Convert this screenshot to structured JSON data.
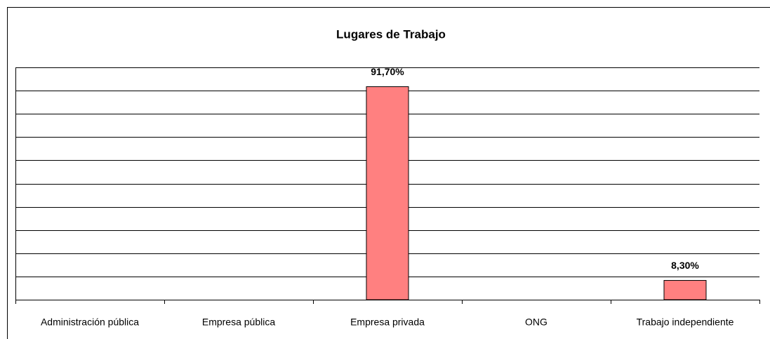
{
  "chart_data": {
    "type": "bar",
    "title": "Lugares de Trabajo",
    "categories": [
      "Administración pública",
      "Empresa pública",
      "Empresa privada",
      "ONG",
      "Trabajo independiente"
    ],
    "values": [
      0,
      0,
      91.7,
      0,
      8.3
    ],
    "value_labels": [
      null,
      null,
      "91,70%",
      null,
      "8,30%"
    ],
    "color": "#ff8080",
    "ylim": [
      0,
      100
    ],
    "yticks": [
      0,
      10,
      20,
      30,
      40,
      50,
      60,
      70,
      80,
      90,
      100
    ],
    "grid": true
  }
}
